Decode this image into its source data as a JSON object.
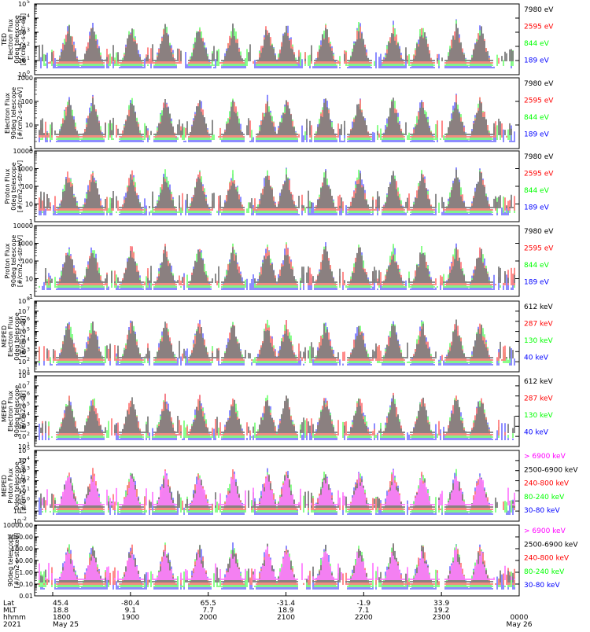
{
  "colors": {
    "black": "#000000",
    "red": "#ff0000",
    "green": "#00ff00",
    "blue": "#0000ff",
    "magenta": "#ff00ff"
  },
  "chart_data": [
    {
      "type": "line",
      "panel": 1,
      "ylabel_lines": [
        "TED",
        "Electron Flux",
        "0deg telescope",
        "[#/cm2-s-str-eV]"
      ],
      "ylog": true,
      "ylim_exp": [
        0,
        5
      ],
      "ytick_labels": [
        "10^0",
        "10^1",
        "10^2",
        "10^3",
        "10^4",
        "10^5"
      ],
      "legend": [
        {
          "text": "7980 eV",
          "color": "black"
        },
        {
          "text": "2595 eV",
          "color": "red"
        },
        {
          "text": "844 eV",
          "color": "green"
        },
        {
          "text": "189 eV",
          "color": "blue"
        }
      ]
    },
    {
      "type": "line",
      "panel": 2,
      "ylabel_lines": [
        "Electron Flux",
        "90deg telescope",
        "[#/cm2-s-str-eV]"
      ],
      "ylog": true,
      "ylim_exp": [
        0,
        4
      ],
      "ytick_labels": [
        "1",
        "10",
        "100",
        "1000"
      ],
      "legend": [
        {
          "text": "7980 eV",
          "color": "black"
        },
        {
          "text": "2595 eV",
          "color": "red"
        },
        {
          "text": "844 eV",
          "color": "green"
        },
        {
          "text": "189 eV",
          "color": "blue"
        }
      ]
    },
    {
      "type": "line",
      "panel": 3,
      "ylabel_lines": [
        "Proton Flux",
        "0deg telescope",
        "[#/cm2-s-str-eV]"
      ],
      "ylog": true,
      "ylim_exp": [
        0,
        4
      ],
      "ytick_labels": [
        "1",
        "10",
        "100",
        "1000",
        "10000"
      ],
      "legend": [
        {
          "text": "7980 eV",
          "color": "black"
        },
        {
          "text": "2595 eV",
          "color": "red"
        },
        {
          "text": "844 eV",
          "color": "green"
        },
        {
          "text": "189 eV",
          "color": "blue"
        }
      ]
    },
    {
      "type": "line",
      "panel": 4,
      "ylabel_lines": [
        "Proton Flux",
        "90deg telescope",
        "[#/cm2-s-str-eV]"
      ],
      "ylog": true,
      "ylim_exp": [
        0,
        4
      ],
      "ytick_labels": [
        "1",
        "10",
        "100",
        "1000",
        "10000"
      ],
      "legend": [
        {
          "text": "7980 eV",
          "color": "black"
        },
        {
          "text": "2595 eV",
          "color": "red"
        },
        {
          "text": "844 eV",
          "color": "green"
        },
        {
          "text": "189 eV",
          "color": "blue"
        }
      ]
    },
    {
      "type": "line",
      "panel": 5,
      "ylabel_lines": [
        "MEPED",
        "Electron Flux",
        "0deg telescope",
        "[#/cm2-s-str]"
      ],
      "ylog": true,
      "ylim_exp": [
        1,
        8
      ],
      "ytick_labels": [
        "10^1",
        "10^2",
        "10^3",
        "10^4",
        "10^5",
        "10^6",
        "10^7",
        "10^8"
      ],
      "legend": [
        {
          "text": "612 keV",
          "color": "black"
        },
        {
          "text": "287 keV",
          "color": "red"
        },
        {
          "text": "130 keV",
          "color": "green"
        },
        {
          "text": "40 keV",
          "color": "blue"
        }
      ]
    },
    {
      "type": "line",
      "panel": 6,
      "ylabel_lines": [
        "MEPED",
        "Electron Flux",
        "90deg telescope",
        "[#/cm2-s-str]"
      ],
      "ylog": true,
      "ylim_exp": [
        1,
        8
      ],
      "ytick_labels": [
        "10^1",
        "10^2",
        "10^3",
        "10^4",
        "10^5",
        "10^6",
        "10^7",
        "10^8"
      ],
      "legend": [
        {
          "text": "612 keV",
          "color": "black"
        },
        {
          "text": "287 keV",
          "color": "red"
        },
        {
          "text": "130 keV",
          "color": "green"
        },
        {
          "text": "40 keV",
          "color": "blue"
        }
      ]
    },
    {
      "type": "line",
      "panel": 7,
      "ylabel_lines": [
        "MEPED",
        "Proton Flux",
        "0deg telescope",
        "[#/cm2-s-str-keV]"
      ],
      "ylog": true,
      "ylim_exp": [
        -2,
        5
      ],
      "ytick_labels": [
        "10^-2",
        "10^-1",
        "10^0",
        "10^1",
        "10^2",
        "10^3",
        "10^4",
        "10^5"
      ],
      "legend": [
        {
          "text": "> 6900 keV",
          "color": "magenta"
        },
        {
          "text": "2500-6900 keV",
          "color": "black"
        },
        {
          "text": "240-800 keV",
          "color": "red"
        },
        {
          "text": "80-240 keV",
          "color": "green"
        },
        {
          "text": "30-80 keV",
          "color": "blue"
        }
      ]
    },
    {
      "type": "line",
      "panel": 8,
      "ylabel_lines": [
        "90deg telescope",
        "[#/cm2-s-str-keV]"
      ],
      "ylog": true,
      "ylim_exp": [
        -2,
        4
      ],
      "ytick_labels": [
        "0.01",
        "0.10",
        "1.00",
        "10.00",
        "100.00",
        "1000.00",
        "10000.00"
      ],
      "legend": [
        {
          "text": "> 6900 keV",
          "color": "magenta"
        },
        {
          "text": "2500-6900 keV",
          "color": "black"
        },
        {
          "text": "240-800 keV",
          "color": "red"
        },
        {
          "text": "80-240 keV",
          "color": "green"
        },
        {
          "text": "30-80 keV",
          "color": "blue"
        }
      ]
    }
  ],
  "time_axis": {
    "row_labels": [
      "Lat",
      "MLT",
      "hhmm",
      "2021"
    ],
    "ticks": [
      {
        "lat": "45.4",
        "mlt": "18.8",
        "hhmm": "1800",
        "date": "May 25"
      },
      {
        "lat": "-80.4",
        "mlt": "9.1",
        "hhmm": "1900",
        "date": ""
      },
      {
        "lat": "65.5",
        "mlt": "7.7",
        "hhmm": "2000",
        "date": ""
      },
      {
        "lat": "-31.4",
        "mlt": "18.9",
        "hhmm": "2100",
        "date": ""
      },
      {
        "lat": "-1.9",
        "mlt": "7.1",
        "hhmm": "2200",
        "date": ""
      },
      {
        "lat": "33.9",
        "mlt": "19.2",
        "hhmm": "2300",
        "date": ""
      },
      {
        "lat": "",
        "mlt": "",
        "hhmm": "0000",
        "date": "May 26"
      }
    ]
  }
}
